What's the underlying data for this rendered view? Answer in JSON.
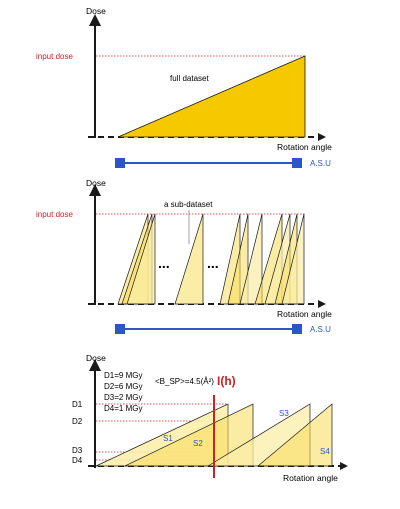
{
  "colors": {
    "fill_dark": "#f5c800",
    "fill_mid": "#f8dc5a",
    "fill_light": "#fbeda7",
    "stroke": "#1a1a1a",
    "red": "#cc2222",
    "blue": "#2a56c6"
  },
  "panel1": {
    "y_axis_label": "Dose",
    "x_axis_label": "Rotation angle",
    "input_dose_label": "input dose",
    "dataset_label": "full dataset",
    "asu_label": "A.S.U"
  },
  "panel2": {
    "y_axis_label": "Dose",
    "x_axis_label": "Rotation angle",
    "input_dose_label": "input dose",
    "subdataset_label": "a sub-dataset",
    "dots_1": "...",
    "dots_2": "...",
    "asu_label": "A.S.U"
  },
  "panel3": {
    "y_axis_label": "Dose",
    "x_axis_label": "Rotation angle",
    "dose_legend": [
      "D1=9 MGy",
      "D2=6 MGy",
      "D3=2 MGy",
      "D4=1 MGy"
    ],
    "bsp_formula": "<B_SP>=4.5(Å²)",
    "h_label": "I(h)",
    "tick_labels": [
      "D1",
      "D2",
      "D3",
      "D4"
    ],
    "series_labels": [
      "S1",
      "S2",
      "S3",
      "S4"
    ]
  }
}
